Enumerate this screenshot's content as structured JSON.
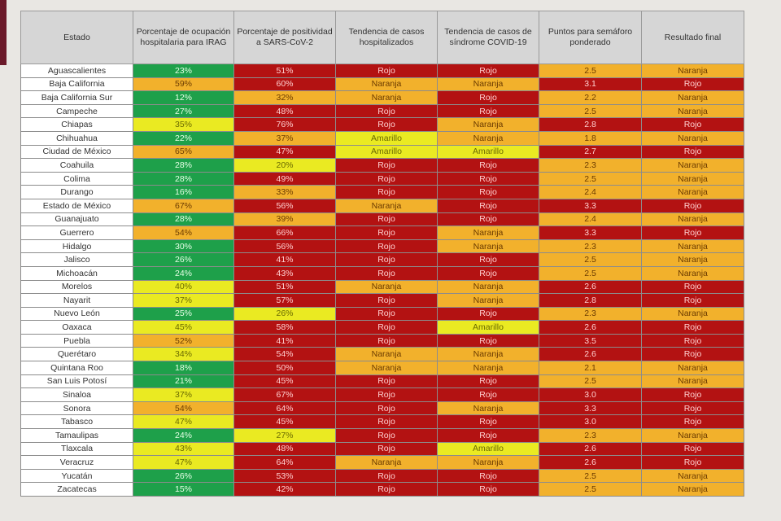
{
  "colors": {
    "verde": "#1ea04a",
    "amarillo": "#eaea22",
    "naranja": "#f2b12c",
    "rojo": "#b31212"
  },
  "table": {
    "headers": [
      "Estado",
      "Porcentaje de ocupación hospitalaria para IRAG",
      "Porcentaje de positividad a SARS-CoV-2",
      "Tendencia de casos hospitalizados",
      "Tendencia de casos de síndrome COVID-19",
      "Puntos para semáforo ponderado",
      "Resultado final"
    ],
    "rows": [
      {
        "estado": "Aguascalientes",
        "ocupacion": "23%",
        "ocupacion_color": "green",
        "positividad": "51%",
        "positividad_color": "red",
        "tend_hosp": "Rojo",
        "tend_sindrome": "Rojo",
        "puntos": "2.5",
        "puntos_color": "orange",
        "resultado": "Naranja"
      },
      {
        "estado": "Baja California",
        "ocupacion": "59%",
        "ocupacion_color": "orange",
        "positividad": "60%",
        "positividad_color": "red",
        "tend_hosp": "Naranja",
        "tend_sindrome": "Naranja",
        "puntos": "3.1",
        "puntos_color": "red",
        "resultado": "Rojo"
      },
      {
        "estado": "Baja California Sur",
        "ocupacion": "12%",
        "ocupacion_color": "green",
        "positividad": "32%",
        "positividad_color": "orange",
        "tend_hosp": "Naranja",
        "tend_sindrome": "Rojo",
        "puntos": "2.2",
        "puntos_color": "orange",
        "resultado": "Naranja"
      },
      {
        "estado": "Campeche",
        "ocupacion": "27%",
        "ocupacion_color": "green",
        "positividad": "48%",
        "positividad_color": "red",
        "tend_hosp": "Rojo",
        "tend_sindrome": "Rojo",
        "puntos": "2.5",
        "puntos_color": "orange",
        "resultado": "Naranja"
      },
      {
        "estado": "Chiapas",
        "ocupacion": "35%",
        "ocupacion_color": "yellow",
        "positividad": "76%",
        "positividad_color": "red",
        "tend_hosp": "Rojo",
        "tend_sindrome": "Naranja",
        "puntos": "2.8",
        "puntos_color": "red",
        "resultado": "Rojo"
      },
      {
        "estado": "Chihuahua",
        "ocupacion": "22%",
        "ocupacion_color": "green",
        "positividad": "37%",
        "positividad_color": "orange",
        "tend_hosp": "Amarillo",
        "tend_sindrome": "Naranja",
        "puntos": "1.8",
        "puntos_color": "orange",
        "resultado": "Naranja"
      },
      {
        "estado": "Ciudad de México",
        "ocupacion": "65%",
        "ocupacion_color": "orange",
        "positividad": "47%",
        "positividad_color": "red",
        "tend_hosp": "Amarillo",
        "tend_sindrome": "Amarillo",
        "puntos": "2.7",
        "puntos_color": "red",
        "resultado": "Rojo"
      },
      {
        "estado": "Coahuila",
        "ocupacion": "28%",
        "ocupacion_color": "green",
        "positividad": "20%",
        "positividad_color": "yellow",
        "tend_hosp": "Rojo",
        "tend_sindrome": "Rojo",
        "puntos": "2.3",
        "puntos_color": "orange",
        "resultado": "Naranja"
      },
      {
        "estado": "Colima",
        "ocupacion": "28%",
        "ocupacion_color": "green",
        "positividad": "49%",
        "positividad_color": "red",
        "tend_hosp": "Rojo",
        "tend_sindrome": "Rojo",
        "puntos": "2.5",
        "puntos_color": "orange",
        "resultado": "Naranja"
      },
      {
        "estado": "Durango",
        "ocupacion": "16%",
        "ocupacion_color": "green",
        "positividad": "33%",
        "positividad_color": "orange",
        "tend_hosp": "Rojo",
        "tend_sindrome": "Rojo",
        "puntos": "2.4",
        "puntos_color": "orange",
        "resultado": "Naranja"
      },
      {
        "estado": "Estado de México",
        "ocupacion": "67%",
        "ocupacion_color": "orange",
        "positividad": "56%",
        "positividad_color": "red",
        "tend_hosp": "Naranja",
        "tend_sindrome": "Rojo",
        "puntos": "3.3",
        "puntos_color": "red",
        "resultado": "Rojo"
      },
      {
        "estado": "Guanajuato",
        "ocupacion": "28%",
        "ocupacion_color": "green",
        "positividad": "39%",
        "positividad_color": "orange",
        "tend_hosp": "Rojo",
        "tend_sindrome": "Rojo",
        "puntos": "2.4",
        "puntos_color": "orange",
        "resultado": "Naranja"
      },
      {
        "estado": "Guerrero",
        "ocupacion": "54%",
        "ocupacion_color": "orange",
        "positividad": "66%",
        "positividad_color": "red",
        "tend_hosp": "Rojo",
        "tend_sindrome": "Naranja",
        "puntos": "3.3",
        "puntos_color": "red",
        "resultado": "Rojo"
      },
      {
        "estado": "Hidalgo",
        "ocupacion": "30%",
        "ocupacion_color": "green",
        "positividad": "56%",
        "positividad_color": "red",
        "tend_hosp": "Rojo",
        "tend_sindrome": "Naranja",
        "puntos": "2.3",
        "puntos_color": "orange",
        "resultado": "Naranja"
      },
      {
        "estado": "Jalisco",
        "ocupacion": "26%",
        "ocupacion_color": "green",
        "positividad": "41%",
        "positividad_color": "red",
        "tend_hosp": "Rojo",
        "tend_sindrome": "Rojo",
        "puntos": "2.5",
        "puntos_color": "orange",
        "resultado": "Naranja"
      },
      {
        "estado": "Michoacán",
        "ocupacion": "24%",
        "ocupacion_color": "green",
        "positividad": "43%",
        "positividad_color": "red",
        "tend_hosp": "Rojo",
        "tend_sindrome": "Rojo",
        "puntos": "2.5",
        "puntos_color": "orange",
        "resultado": "Naranja"
      },
      {
        "estado": "Morelos",
        "ocupacion": "40%",
        "ocupacion_color": "yellow",
        "positividad": "51%",
        "positividad_color": "red",
        "tend_hosp": "Naranja",
        "tend_sindrome": "Naranja",
        "puntos": "2.6",
        "puntos_color": "red",
        "resultado": "Rojo"
      },
      {
        "estado": "Nayarit",
        "ocupacion": "37%",
        "ocupacion_color": "yellow",
        "positividad": "57%",
        "positividad_color": "red",
        "tend_hosp": "Rojo",
        "tend_sindrome": "Naranja",
        "puntos": "2.8",
        "puntos_color": "red",
        "resultado": "Rojo"
      },
      {
        "estado": "Nuevo León",
        "ocupacion": "25%",
        "ocupacion_color": "green",
        "positividad": "26%",
        "positividad_color": "yellow",
        "tend_hosp": "Rojo",
        "tend_sindrome": "Rojo",
        "puntos": "2.3",
        "puntos_color": "orange",
        "resultado": "Naranja"
      },
      {
        "estado": "Oaxaca",
        "ocupacion": "45%",
        "ocupacion_color": "yellow",
        "positividad": "58%",
        "positividad_color": "red",
        "tend_hosp": "Rojo",
        "tend_sindrome": "Amarillo",
        "puntos": "2.6",
        "puntos_color": "red",
        "resultado": "Rojo"
      },
      {
        "estado": "Puebla",
        "ocupacion": "52%",
        "ocupacion_color": "orange",
        "positividad": "41%",
        "positividad_color": "red",
        "tend_hosp": "Rojo",
        "tend_sindrome": "Rojo",
        "puntos": "3.5",
        "puntos_color": "red",
        "resultado": "Rojo"
      },
      {
        "estado": "Querétaro",
        "ocupacion": "34%",
        "ocupacion_color": "yellow",
        "positividad": "54%",
        "positividad_color": "red",
        "tend_hosp": "Naranja",
        "tend_sindrome": "Naranja",
        "puntos": "2.6",
        "puntos_color": "red",
        "resultado": "Rojo"
      },
      {
        "estado": "Quintana Roo",
        "ocupacion": "18%",
        "ocupacion_color": "green",
        "positividad": "50%",
        "positividad_color": "red",
        "tend_hosp": "Naranja",
        "tend_sindrome": "Naranja",
        "puntos": "2.1",
        "puntos_color": "orange",
        "resultado": "Naranja"
      },
      {
        "estado": "San Luis Potosí",
        "ocupacion": "21%",
        "ocupacion_color": "green",
        "positividad": "45%",
        "positividad_color": "red",
        "tend_hosp": "Rojo",
        "tend_sindrome": "Rojo",
        "puntos": "2.5",
        "puntos_color": "orange",
        "resultado": "Naranja"
      },
      {
        "estado": "Sinaloa",
        "ocupacion": "37%",
        "ocupacion_color": "yellow",
        "positividad": "67%",
        "positividad_color": "red",
        "tend_hosp": "Rojo",
        "tend_sindrome": "Rojo",
        "puntos": "3.0",
        "puntos_color": "red",
        "resultado": "Rojo"
      },
      {
        "estado": "Sonora",
        "ocupacion": "54%",
        "ocupacion_color": "orange",
        "positividad": "64%",
        "positividad_color": "red",
        "tend_hosp": "Rojo",
        "tend_sindrome": "Naranja",
        "puntos": "3.3",
        "puntos_color": "red",
        "resultado": "Rojo"
      },
      {
        "estado": "Tabasco",
        "ocupacion": "47%",
        "ocupacion_color": "yellow",
        "positividad": "45%",
        "positividad_color": "red",
        "tend_hosp": "Rojo",
        "tend_sindrome": "Rojo",
        "puntos": "3.0",
        "puntos_color": "red",
        "resultado": "Rojo"
      },
      {
        "estado": "Tamaulipas",
        "ocupacion": "24%",
        "ocupacion_color": "green",
        "positividad": "27%",
        "positividad_color": "yellow",
        "tend_hosp": "Rojo",
        "tend_sindrome": "Rojo",
        "puntos": "2.3",
        "puntos_color": "orange",
        "resultado": "Naranja"
      },
      {
        "estado": "Tlaxcala",
        "ocupacion": "43%",
        "ocupacion_color": "yellow",
        "positividad": "48%",
        "positividad_color": "red",
        "tend_hosp": "Rojo",
        "tend_sindrome": "Amarillo",
        "puntos": "2.6",
        "puntos_color": "red",
        "resultado": "Rojo"
      },
      {
        "estado": "Veracruz",
        "ocupacion": "47%",
        "ocupacion_color": "yellow",
        "positividad": "64%",
        "positividad_color": "red",
        "tend_hosp": "Naranja",
        "tend_sindrome": "Naranja",
        "puntos": "2.6",
        "puntos_color": "red",
        "resultado": "Rojo"
      },
      {
        "estado": "Yucatán",
        "ocupacion": "26%",
        "ocupacion_color": "green",
        "positividad": "53%",
        "positividad_color": "red",
        "tend_hosp": "Rojo",
        "tend_sindrome": "Rojo",
        "puntos": "2.5",
        "puntos_color": "orange",
        "resultado": "Naranja"
      },
      {
        "estado": "Zacatecas",
        "ocupacion": "15%",
        "ocupacion_color": "green",
        "positividad": "42%",
        "positividad_color": "red",
        "tend_hosp": "Rojo",
        "tend_sindrome": "Rojo",
        "puntos": "2.5",
        "puntos_color": "orange",
        "resultado": "Naranja"
      }
    ]
  }
}
